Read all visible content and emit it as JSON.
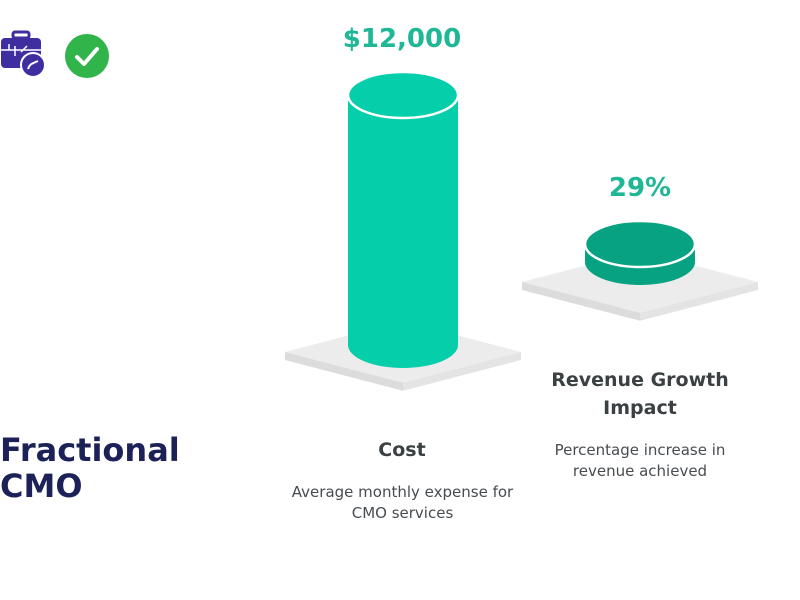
{
  "header": {
    "icons": [
      "briefcase-icon",
      "check-circle-icon"
    ]
  },
  "title": "Fractional CMO",
  "colors": {
    "bar_primary": "#05ceaa",
    "bar_secondary": "#06a282",
    "value_text": "#1fb796",
    "title_text": "#1c2257",
    "base_platform": "#ececec",
    "icon_purple": "#3f2ea0",
    "check_green": "#31b44a"
  },
  "chart_data": {
    "type": "bar",
    "categories": [
      "Cost",
      "Revenue Growth Impact"
    ],
    "value_labels": [
      "$12,000",
      "29%"
    ],
    "descriptions": [
      "Average monthly expense for CMO services",
      "Percentage increase in revenue achieved"
    ],
    "values": [
      12000,
      29
    ],
    "units": [
      "USD",
      "percent"
    ]
  }
}
